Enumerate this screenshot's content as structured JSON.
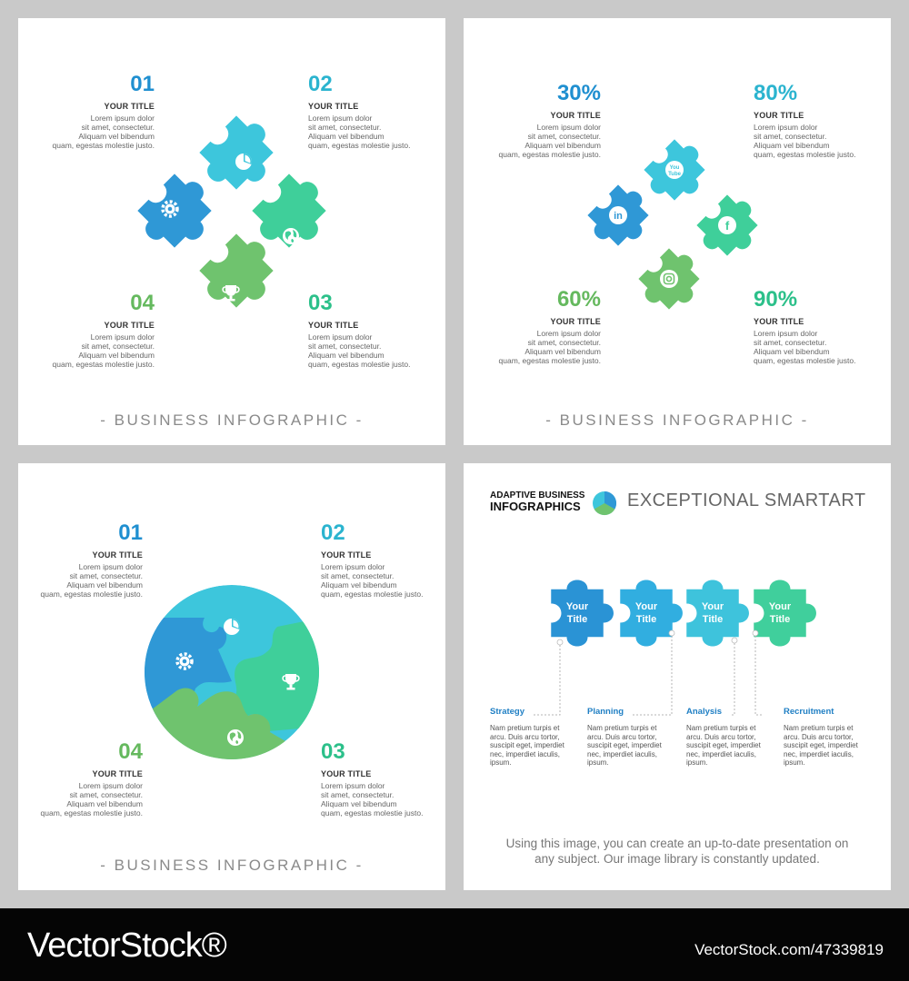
{
  "colors": {
    "blue": "#2f98d6",
    "cyan": "#3dc6dc",
    "teal": "#3fcf9a",
    "green": "#6fc36e"
  },
  "panel1": {
    "items": [
      {
        "num": "01",
        "title": "YOUR TITLE",
        "text": "Lorem ipsum dolor\nsit amet, consectetur.\nAliquam vel bibendum\nquam, egestas molestie justo.",
        "color": "#1f8fd0"
      },
      {
        "num": "02",
        "title": "YOUR TITLE",
        "text": "Lorem ipsum dolor\nsit amet, consectetur.\nAliquam vel bibendum\nquam, egestas molestie justo.",
        "color": "#2bb4cf"
      },
      {
        "num": "03",
        "title": "YOUR TITLE",
        "text": "Lorem ipsum dolor\nsit amet, consectetur.\nAliquam vel bibendum\nquam, egestas molestie justo.",
        "color": "#2cc08a"
      },
      {
        "num": "04",
        "title": "YOUR TITLE",
        "text": "Lorem ipsum dolor\nsit amet, consectetur.\nAliquam vel bibendum\nquam, egestas molestie justo.",
        "color": "#65b95e"
      }
    ],
    "footer": "- BUSINESS INFOGRAPHIC -",
    "icons": [
      "gear-icon",
      "pie-chart-icon",
      "globe-icon",
      "trophy-icon"
    ]
  },
  "panel2": {
    "items": [
      {
        "num": "30%",
        "title": "YOUR TITLE",
        "text": "Lorem ipsum dolor\nsit amet, consectetur.\nAliquam vel bibendum\nquam, egestas molestie justo.",
        "color": "#1f8fd0"
      },
      {
        "num": "80%",
        "title": "YOUR TITLE",
        "text": "Lorem ipsum dolor\nsit amet, consectetur.\nAliquam vel bibendum\nquam, egestas molestie justo.",
        "color": "#2bb4cf"
      },
      {
        "num": "90%",
        "title": "YOUR TITLE",
        "text": "Lorem ipsum dolor\nsit amet, consectetur.\nAliquam vel bibendum\nquam, egestas molestie justo.",
        "color": "#2cc08a"
      },
      {
        "num": "60%",
        "title": "YOUR TITLE",
        "text": "Lorem ipsum dolor\nsit amet, consectetur.\nAliquam vel bibendum\nquam, egestas molestie justo.",
        "color": "#65b95e"
      }
    ],
    "footer": "- BUSINESS INFOGRAPHIC -",
    "icon_labels": {
      "linkedin": "in",
      "youtube_top": "You",
      "youtube_bottom": "Tube",
      "facebook": "f"
    },
    "icons": [
      "linkedin-icon",
      "youtube-icon",
      "facebook-icon",
      "instagram-icon"
    ]
  },
  "panel3": {
    "items": [
      {
        "num": "01",
        "title": "YOUR TITLE",
        "text": "Lorem ipsum dolor\nsit amet, consectetur.\nAliquam vel bibendum\nquam, egestas molestie justo.",
        "color": "#1f8fd0"
      },
      {
        "num": "02",
        "title": "YOUR TITLE",
        "text": "Lorem ipsum dolor\nsit amet, consectetur.\nAliquam vel bibendum\nquam, egestas molestie justo.",
        "color": "#2bb4cf"
      },
      {
        "num": "03",
        "title": "YOUR TITLE",
        "text": "Lorem ipsum dolor\nsit amet, consectetur.\nAliquam vel bibendum\nquam, egestas molestie justo.",
        "color": "#2cc08a"
      },
      {
        "num": "04",
        "title": "YOUR TITLE",
        "text": "Lorem ipsum dolor\nsit amet, consectetur.\nAliquam vel bibendum\nquam, egestas molestie justo.",
        "color": "#65b95e"
      }
    ],
    "footer": "- BUSINESS INFOGRAPHIC -",
    "icons": [
      "gear-icon",
      "pie-chart-icon",
      "trophy-icon",
      "globe-icon"
    ]
  },
  "panel4": {
    "header_small_1": "ADAPTIVE BUSINESS",
    "header_small_2": "INFOGRAPHICS",
    "header_big": "EXCEPTIONAL SMARTART",
    "pieces": [
      {
        "line1": "Your",
        "line2": "Title",
        "color": "#2a93d5"
      },
      {
        "line1": "Your",
        "line2": "Title",
        "color": "#31aee0"
      },
      {
        "line1": "Your",
        "line2": "Title",
        "color": "#3ec3dc"
      },
      {
        "line1": "Your",
        "line2": "Title",
        "color": "#40cf9c"
      }
    ],
    "steps": [
      {
        "title": "Strategy",
        "text": "Nam pretium turpis et\narcu. Duis arcu tortor,\nsuscipit eget, imperdiet\nnec, imperdiet iaculis,\nipsum."
      },
      {
        "title": "Planning",
        "text": "Nam pretium turpis et\narcu. Duis arcu tortor,\nsuscipit eget, imperdiet\nnec, imperdiet iaculis,\nipsum."
      },
      {
        "title": "Analysis",
        "text": "Nam pretium turpis et\narcu. Duis arcu tortor,\nsuscipit eget, imperdiet\nnec, imperdiet iaculis,\nipsum."
      },
      {
        "title": "Recruitment",
        "text": "Nam pretium turpis et\narcu. Duis arcu tortor,\nsuscipit eget, imperdiet\nnec, imperdiet iaculis,\nipsum."
      }
    ],
    "note": "Using this image, you can create an up-to-date presentation on\nany subject. Our image library is constantly updated."
  },
  "watermark": {
    "brand": "VectorStock®",
    "id": "VectorStock.com/47339819"
  }
}
